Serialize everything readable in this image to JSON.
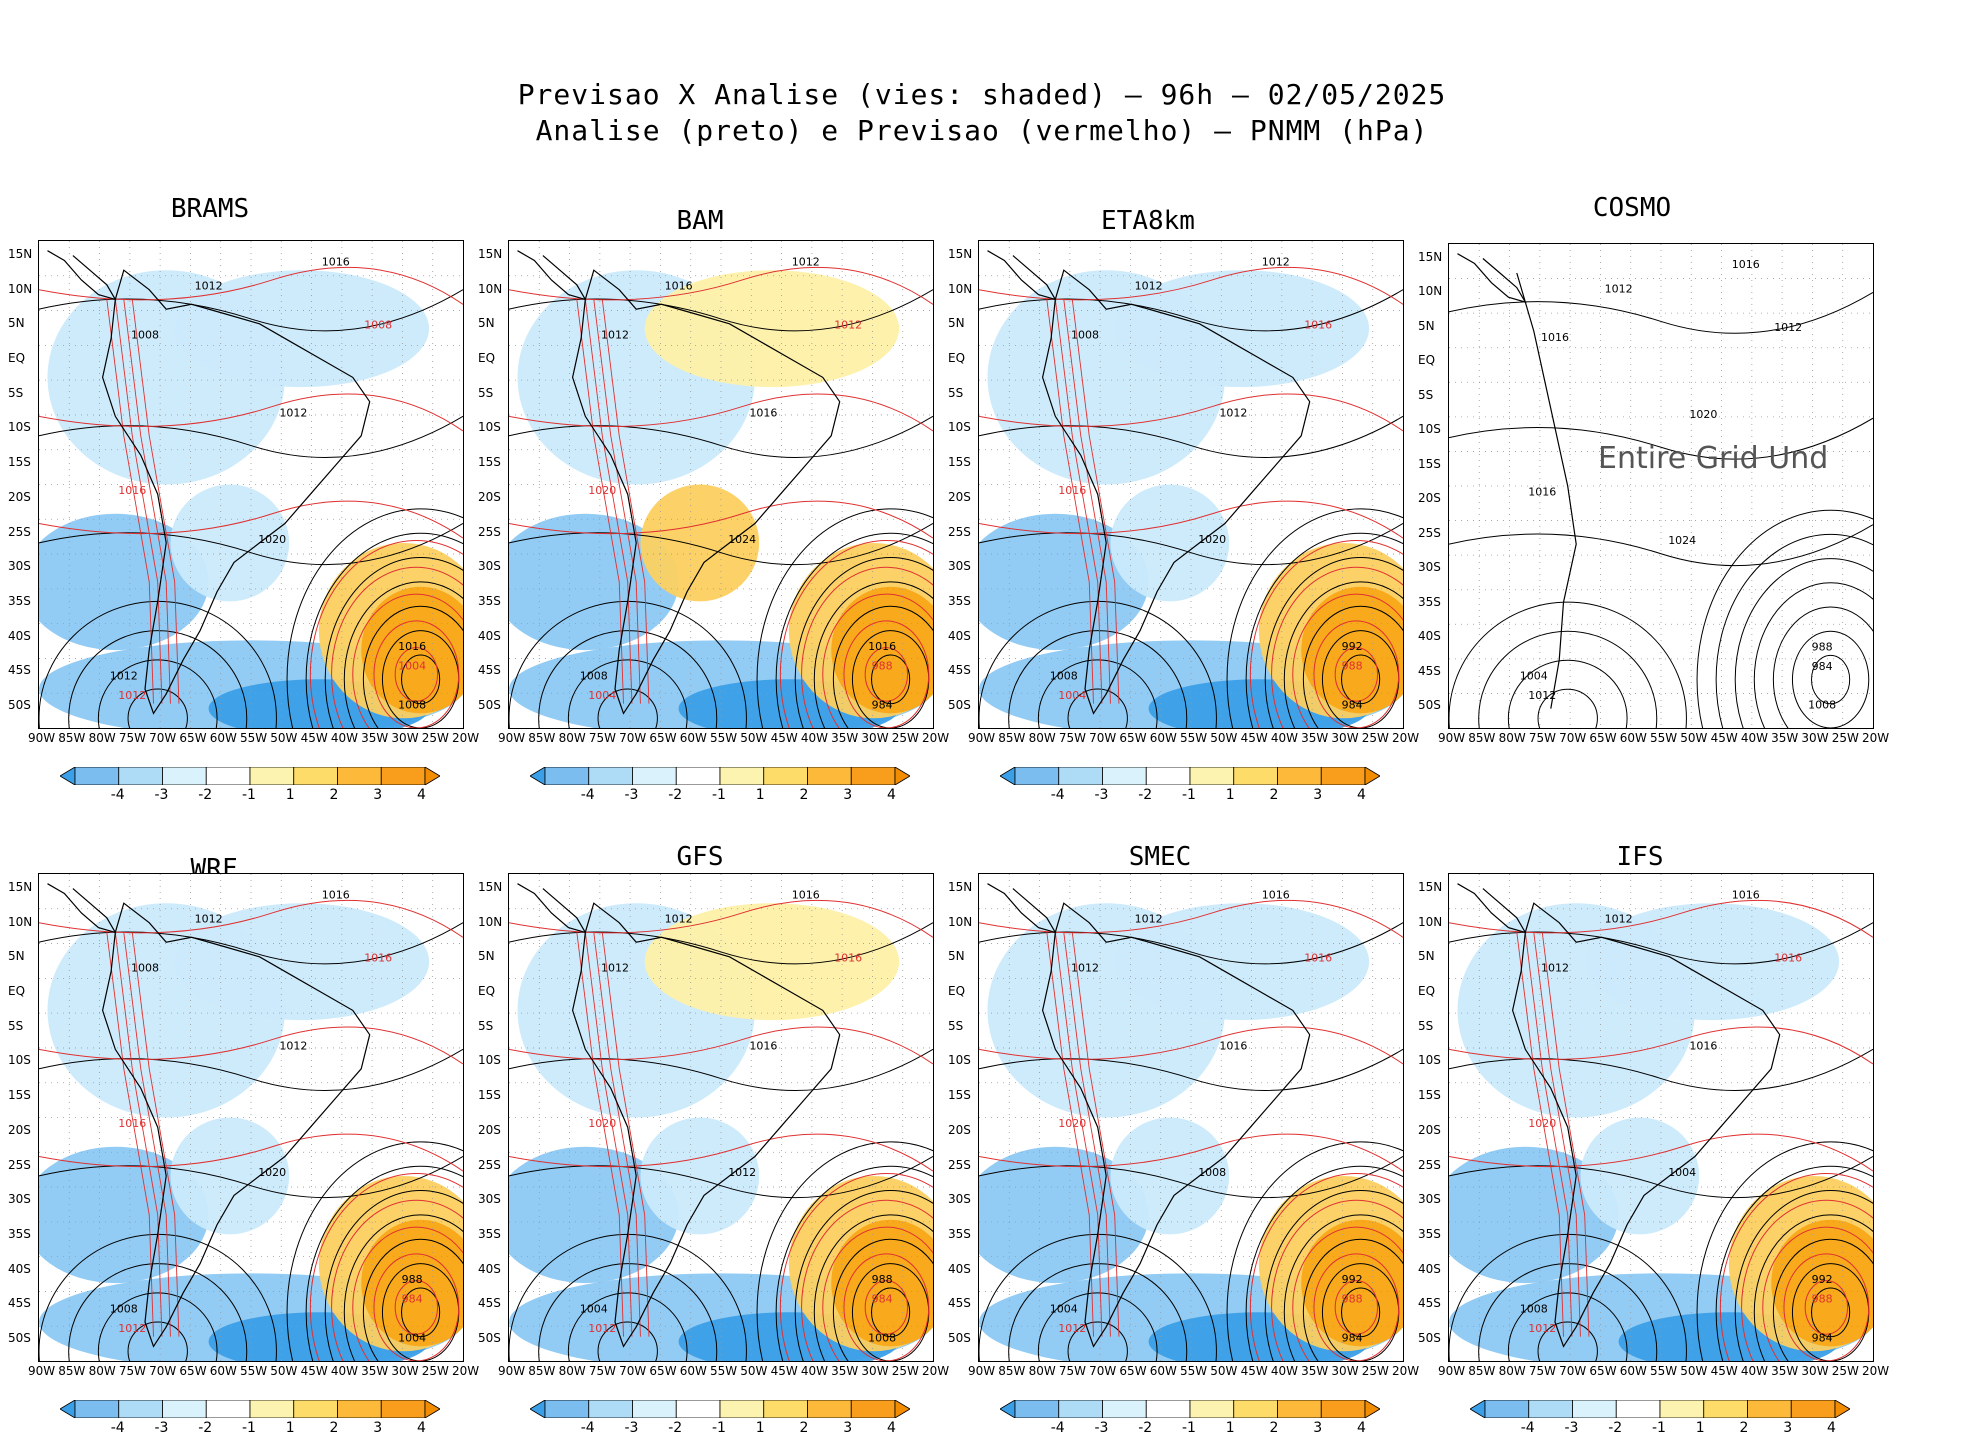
{
  "header": {
    "line1": "Previsao X Analise (vies: shaded) – 96h – 02/05/2025",
    "line2": "Analise (preto) e Previsao (vermelho) – PNMM (hPa)"
  },
  "lat_labels": [
    "15N",
    "10N",
    "5N",
    "EQ",
    "5S",
    "10S",
    "15S",
    "20S",
    "25S",
    "30S",
    "35S",
    "40S",
    "45S",
    "50S"
  ],
  "lon_labels": [
    "90W",
    "85W",
    "80W",
    "75W",
    "70W",
    "65W",
    "60W",
    "55W",
    "50W",
    "45W",
    "40W",
    "35W",
    "30W",
    "25W",
    "20W"
  ],
  "colorbar": {
    "labels": [
      "-4",
      "-3",
      "-2",
      "-1",
      "1",
      "2",
      "3",
      "4"
    ],
    "colors": [
      "#3b9fe8",
      "#7cbdf0",
      "#aedcf6",
      "#d9f2fb",
      "#ffffff",
      "#fdf3b0",
      "#fddc6a",
      "#fcb93a",
      "#f99d1c",
      "#f28c00"
    ]
  },
  "colors": {
    "analysis": "#000000",
    "forecast": "#e03030",
    "neg_strong": "#3b9fe8",
    "neg_mid": "#8cc8f2",
    "neg_light": "#cbeafb",
    "pos_light": "#fdf0a8",
    "pos_mid": "#fcd060",
    "pos_strong": "#f8a818"
  },
  "panels": [
    {
      "name": "BRAMS",
      "title": "BRAMS",
      "contours": [
        "1012",
        "1008",
        "1008",
        "1012",
        "1016",
        "1020",
        "1016",
        "1004",
        "1008",
        "1012",
        "1012",
        "1016"
      ],
      "has_bias": true
    },
    {
      "name": "BAM",
      "title": "BAM",
      "contours": [
        "1016",
        "1012",
        "1012",
        "1016",
        "1020",
        "1024",
        "1016",
        "988",
        "984",
        "1008",
        "1004",
        "1012"
      ],
      "has_bias": true
    },
    {
      "name": "ETA8km",
      "title": "ETA8km",
      "contours": [
        "1012",
        "1016",
        "1008",
        "1012",
        "1016",
        "1020",
        "992",
        "988",
        "984",
        "1008",
        "1004",
        "1012"
      ],
      "has_bias": true
    },
    {
      "name": "COSMO",
      "title": "COSMO",
      "contours": [
        "1012",
        "1012",
        "1016",
        "1020",
        "1016",
        "1024",
        "988",
        "984",
        "1008",
        "1004",
        "1012",
        "1016"
      ],
      "has_bias": false,
      "overlay": "Entire Grid Und"
    },
    {
      "name": "WRF",
      "title": "WRF",
      "contours": [
        "1012",
        "1016",
        "1008",
        "1012",
        "1016",
        "1020",
        "988",
        "984",
        "1004",
        "1008",
        "1012",
        "1016"
      ],
      "has_bias": true
    },
    {
      "name": "GFS",
      "title": "GFS",
      "contours": [
        "1012",
        "1016",
        "1012",
        "1016",
        "1020",
        "1012",
        "988",
        "984",
        "1008",
        "1004",
        "1012",
        "1016"
      ],
      "has_bias": true
    },
    {
      "name": "SMEC",
      "title": "SMEC",
      "contours": [
        "1012",
        "1016",
        "1012",
        "1016",
        "1020",
        "1008",
        "992",
        "988",
        "984",
        "1004",
        "1012",
        "1016"
      ],
      "has_bias": true
    },
    {
      "name": "IFS",
      "title": "IFS",
      "contours": [
        "1012",
        "1016",
        "1012",
        "1016",
        "1020",
        "1004",
        "992",
        "988",
        "984",
        "1008",
        "1012",
        "1016"
      ],
      "has_bias": true
    }
  ]
}
